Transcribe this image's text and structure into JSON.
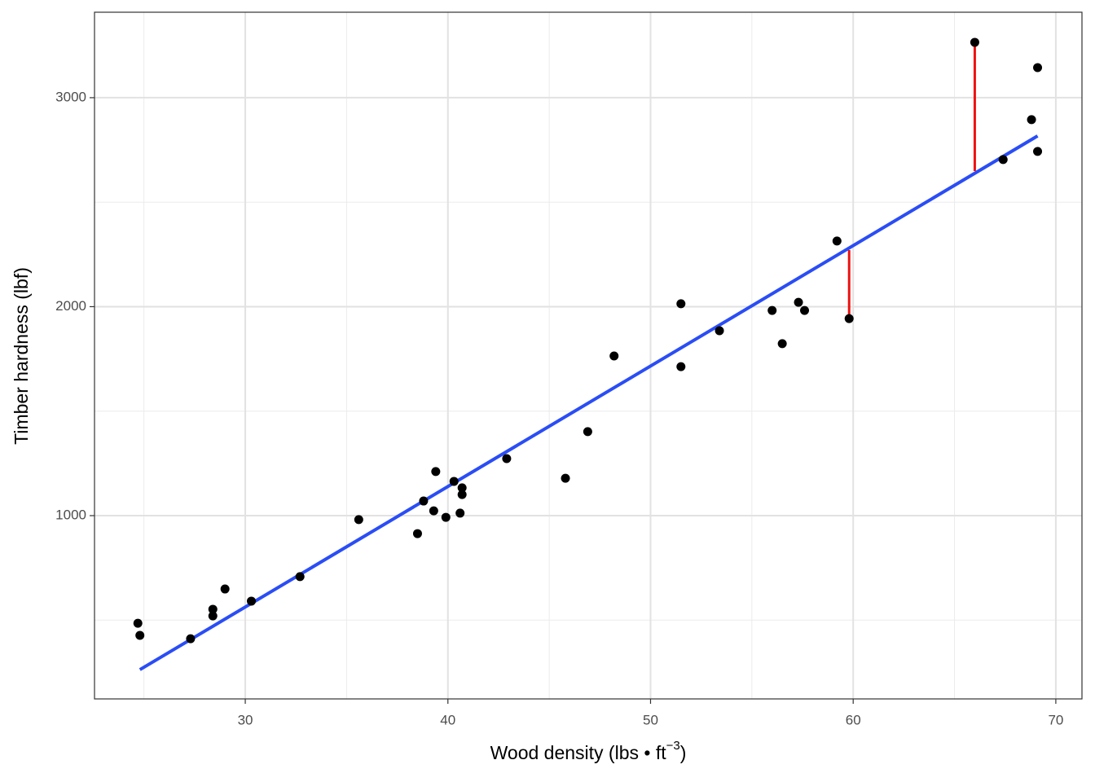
{
  "chart_data": {
    "type": "scatter",
    "x_label": {
      "text": "Wood density (lbs • ft",
      "sup": "−3",
      "end": ")"
    },
    "y_label": "Timber hardness (lbf)",
    "x": [
      24.7,
      24.8,
      27.3,
      28.4,
      28.4,
      29.0,
      30.3,
      32.7,
      35.6,
      38.5,
      38.8,
      39.3,
      39.4,
      39.9,
      40.3,
      40.6,
      40.7,
      40.7,
      42.9,
      45.8,
      46.9,
      48.2,
      51.5,
      51.5,
      53.4,
      56.0,
      56.5,
      57.3,
      57.6,
      59.2,
      59.8,
      66.0,
      67.4,
      68.8,
      69.1,
      69.1
    ],
    "y": [
      485,
      427,
      411,
      552,
      520,
      649,
      591,
      708,
      981,
      914,
      1070,
      1023,
      1211,
      992,
      1164,
      1012,
      1133,
      1101,
      1273,
      1179,
      1402,
      1764,
      2014,
      1713,
      1885,
      1982,
      1823,
      2021,
      1982,
      2314,
      1943,
      3265,
      2704,
      2895,
      2743,
      3144
    ],
    "color": "#000000",
    "fit": {
      "x": [
        24.8,
        69.1
      ],
      "y": [
        263,
        2817
      ],
      "color": "#2a4df5"
    },
    "residuals": [
      {
        "x": [
          59.8,
          59.8
        ],
        "y": [
          1943,
          2271
        ]
      },
      {
        "x": [
          66.0,
          66.0
        ],
        "y": [
          2649,
          3265
        ]
      }
    ],
    "residual_color": "#ee1111",
    "xlim": [
      22.56,
      71.29
    ],
    "ylim": [
      123,
      3409
    ],
    "xticks": [
      30,
      40,
      50,
      60,
      70
    ],
    "yticks": [
      1000,
      2000,
      3000
    ],
    "x_minor_grid": [
      25,
      35,
      45,
      55,
      65
    ],
    "y_minor_grid": [
      500,
      1500,
      2500
    ],
    "grid": true
  }
}
